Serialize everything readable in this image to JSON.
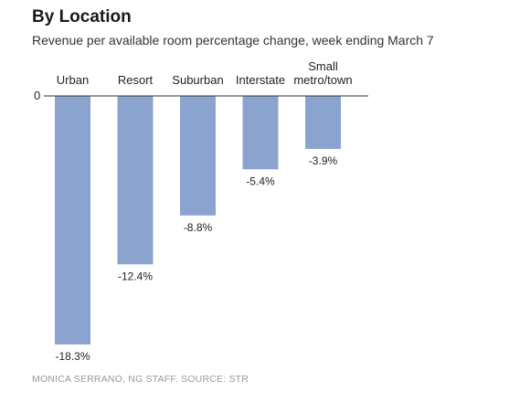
{
  "title": "By Location",
  "subtitle": "Revenue per available room percentage change, week ending March 7",
  "credit": "MONICA SERRANO, NG STAFF. SOURCE: STR",
  "chart_data": {
    "type": "bar",
    "categories": [
      "Urban",
      "Resort",
      "Suburban",
      "Interstate",
      "Small metro/town"
    ],
    "category_lines": [
      [
        "Urban"
      ],
      [
        "Resort"
      ],
      [
        "Suburban"
      ],
      [
        "Interstate"
      ],
      [
        "Small",
        "metro/town"
      ]
    ],
    "values": [
      -18.3,
      -12.4,
      -8.8,
      -5.4,
      -3.9
    ],
    "value_labels": [
      "-18.3%",
      "-12.4%",
      "-8.8%",
      "-5.4%",
      "-3.9%"
    ],
    "y_tick_label": "0",
    "y_tick_value": 0,
    "ylim": [
      -18.3,
      0
    ],
    "bar_color": "#8ba3cf",
    "axis_color": "#333333",
    "grid": false,
    "legend": "none"
  }
}
